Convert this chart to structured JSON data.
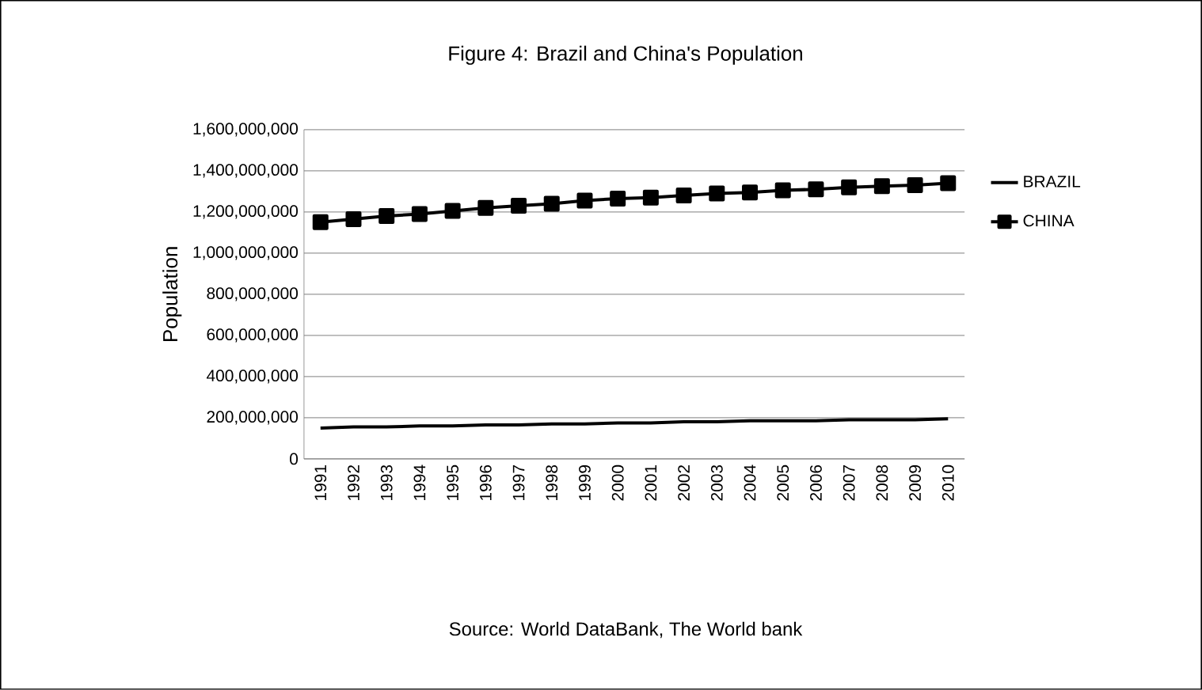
{
  "chart_data": {
    "type": "line",
    "title": "Figure 4:  Brazil and China's Population",
    "ylabel": "Population",
    "categories": [
      "1991",
      "1992",
      "1993",
      "1994",
      "1995",
      "1996",
      "1997",
      "1998",
      "1999",
      "2000",
      "2001",
      "2002",
      "2003",
      "2004",
      "2005",
      "2006",
      "2007",
      "2008",
      "2009",
      "2010"
    ],
    "series": [
      {
        "name": "BRAZIL",
        "color": "#000000",
        "marker": "none",
        "values": [
          150000000,
          155000000,
          155000000,
          160000000,
          160000000,
          165000000,
          165000000,
          170000000,
          170000000,
          175000000,
          175000000,
          180000000,
          180000000,
          185000000,
          185000000,
          185000000,
          190000000,
          190000000,
          190000000,
          195000000
        ]
      },
      {
        "name": "CHINA",
        "color": "#000000",
        "marker": "square",
        "values": [
          1150000000,
          1165000000,
          1180000000,
          1190000000,
          1205000000,
          1220000000,
          1230000000,
          1240000000,
          1255000000,
          1265000000,
          1270000000,
          1280000000,
          1290000000,
          1295000000,
          1305000000,
          1310000000,
          1320000000,
          1325000000,
          1330000000,
          1340000000
        ]
      }
    ],
    "ylim": [
      0,
      1600000000
    ],
    "yticks": [
      0,
      {
        "value": 200000000,
        "label": "200,000,000"
      },
      {
        "value": 400000000,
        "label": "400,000,000"
      },
      {
        "value": 600000000,
        "label": "600,000,000"
      },
      {
        "value": 800000000,
        "label": "800,000,000"
      },
      {
        "value": 1000000000,
        "label": "1,000,000,000"
      },
      {
        "value": 1200000000,
        "label": "1,200,000,000"
      },
      {
        "value": 1400000000,
        "label": "1,400,000,000"
      },
      {
        "value": 1600000000,
        "label": "1,600,000,000"
      }
    ],
    "grid": "y",
    "legend": "right",
    "line_style": "solid",
    "annotations": [
      "Source: World DataBank, The World bank"
    ]
  }
}
